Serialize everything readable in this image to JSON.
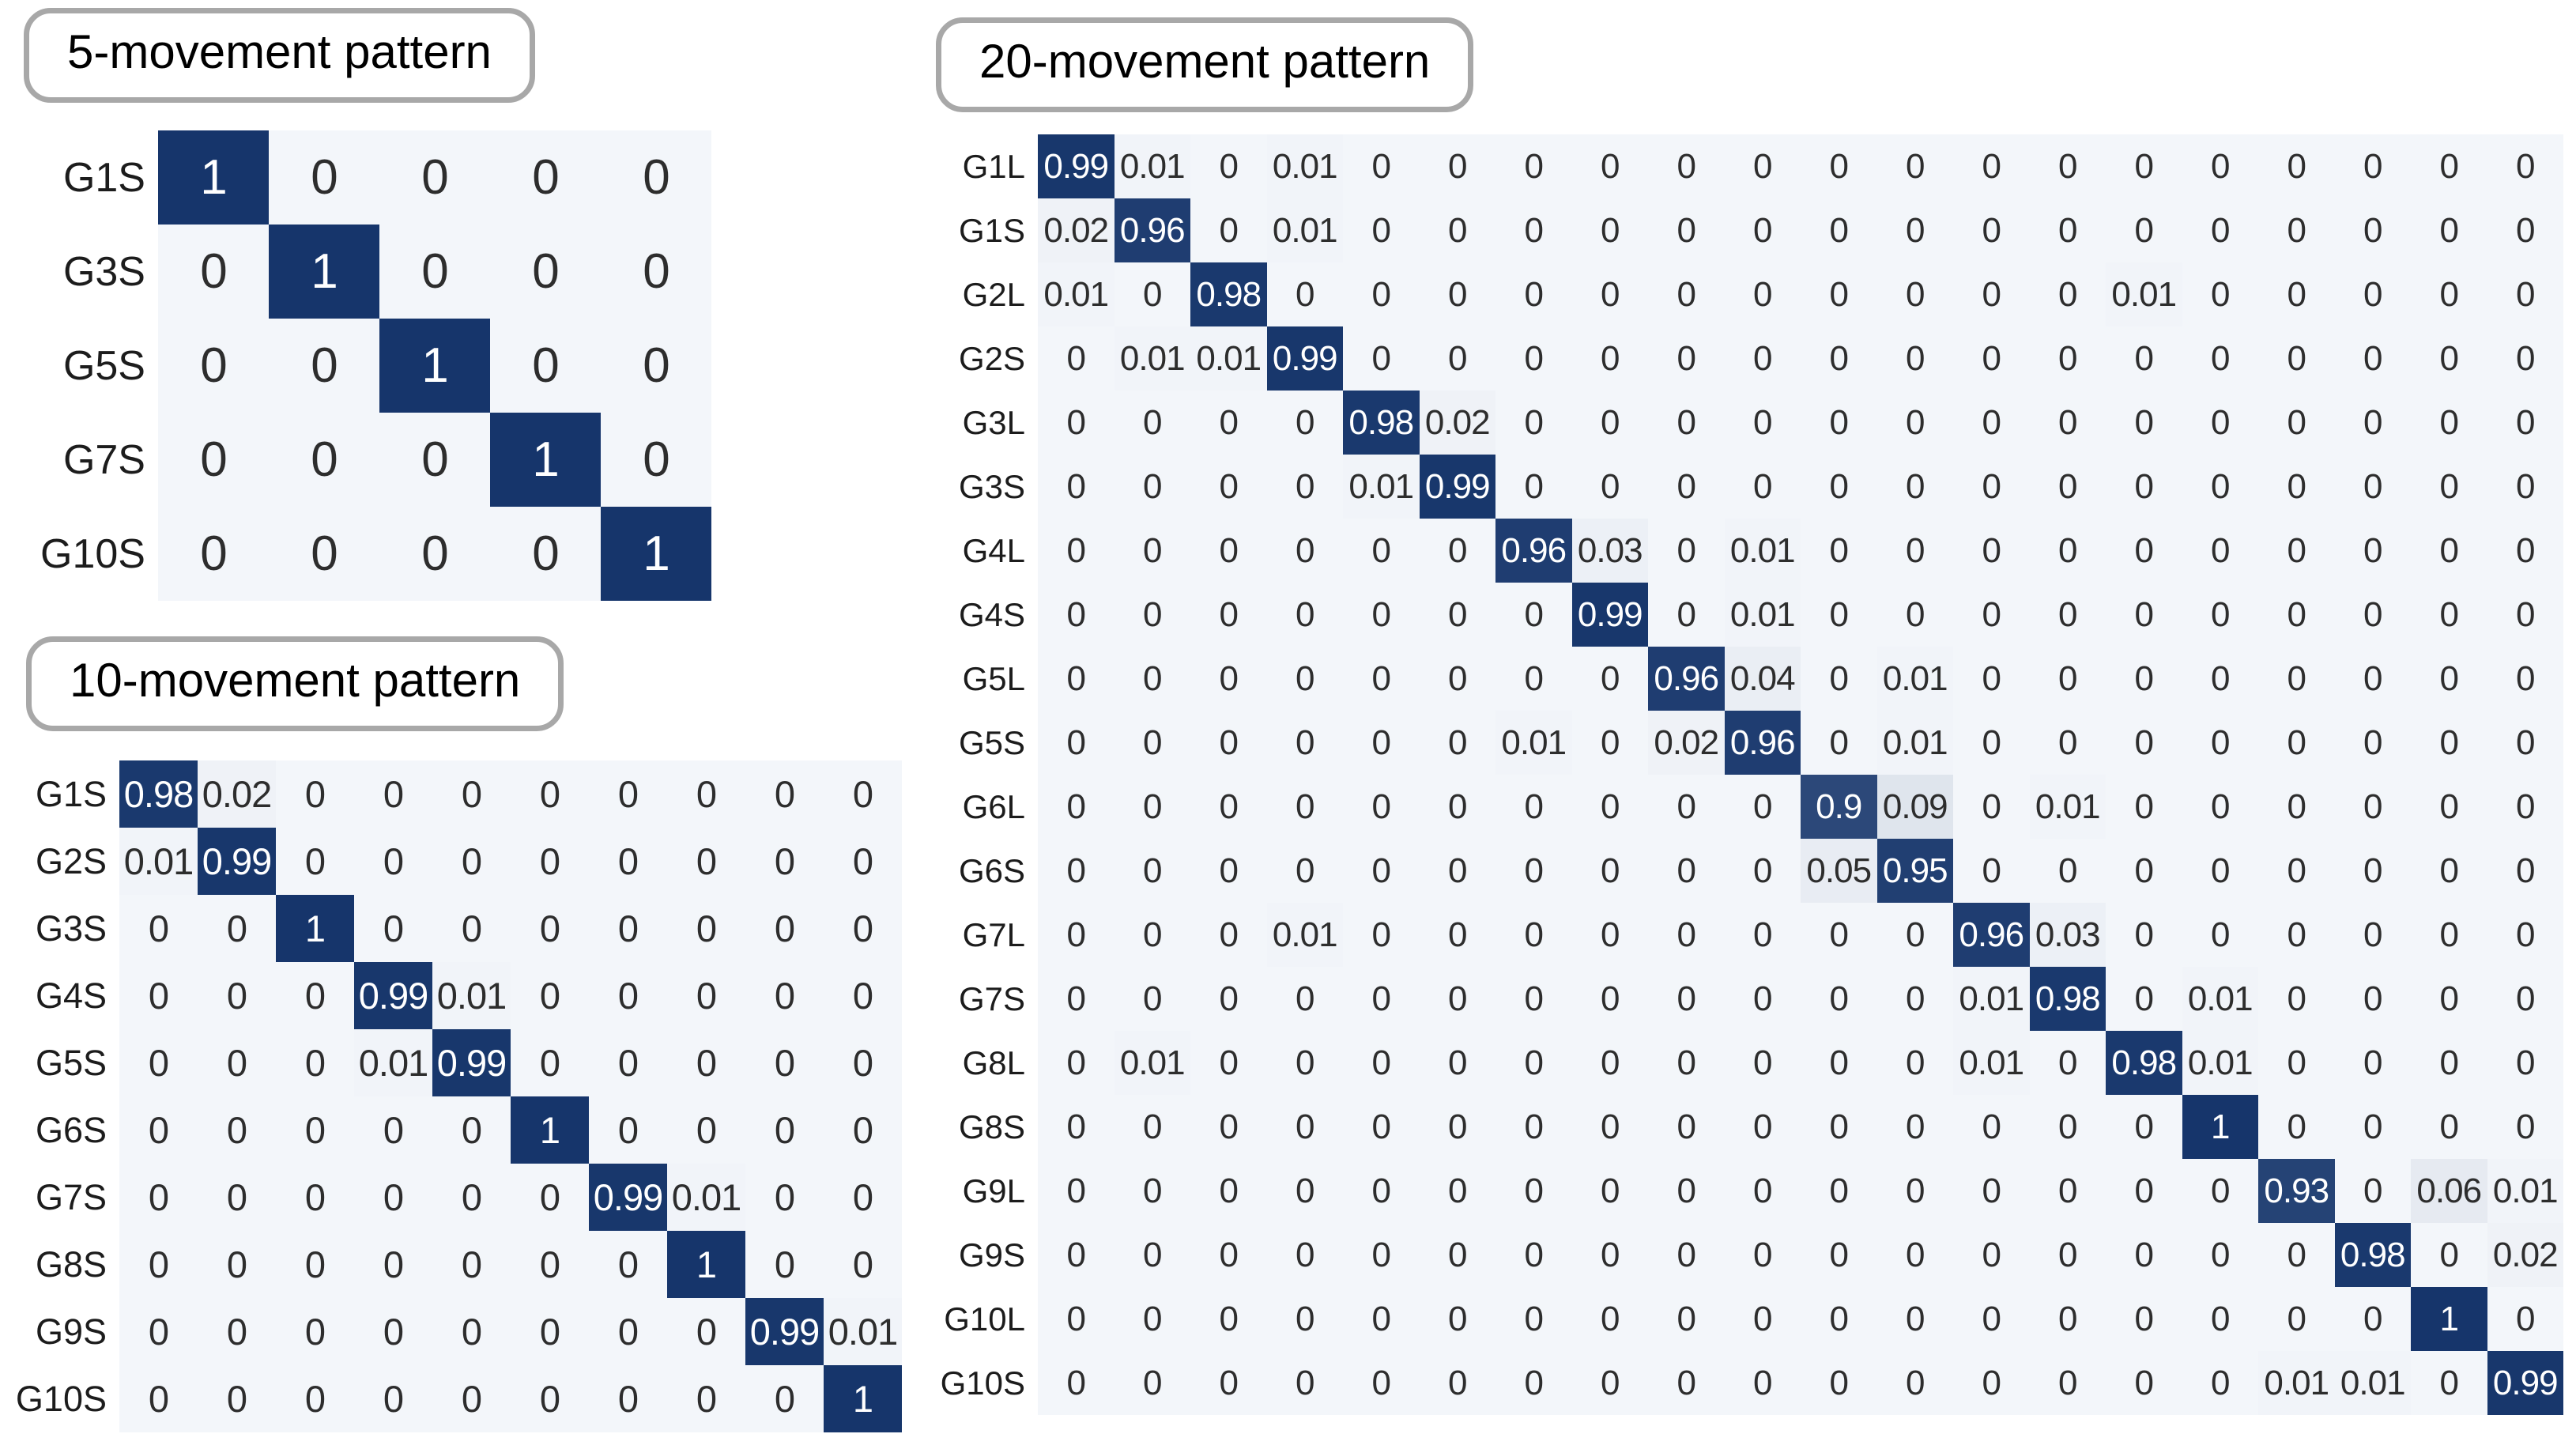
{
  "colors": {
    "page_bg": "#ffffff",
    "cell_low": "#f3f6fa",
    "cell_high": "#16356b",
    "value_text_dark": "#2d2d2d",
    "value_text_light": "#ffffff",
    "label_text": "#1c1c1c",
    "title_border": "#a8a8a8",
    "title_text": "#000000"
  },
  "chart_data": [
    {
      "type": "heatmap",
      "title": "5-movement pattern",
      "legend_position": "none",
      "grid": false,
      "row_labels": [
        "G1S",
        "G3S",
        "G5S",
        "G7S",
        "G10S"
      ],
      "values": [
        [
          1,
          0,
          0,
          0,
          0
        ],
        [
          0,
          1,
          0,
          0,
          0
        ],
        [
          0,
          0,
          1,
          0,
          0
        ],
        [
          0,
          0,
          0,
          1,
          0
        ],
        [
          0,
          0,
          0,
          0,
          1
        ]
      ]
    },
    {
      "type": "heatmap",
      "title": "10-movement pattern",
      "legend_position": "none",
      "grid": false,
      "row_labels": [
        "G1S",
        "G2S",
        "G3S",
        "G4S",
        "G5S",
        "G6S",
        "G7S",
        "G8S",
        "G9S",
        "G10S"
      ],
      "values": [
        [
          0.98,
          0.02,
          0,
          0,
          0,
          0,
          0,
          0,
          0,
          0
        ],
        [
          0.01,
          0.99,
          0,
          0,
          0,
          0,
          0,
          0,
          0,
          0
        ],
        [
          0,
          0,
          1,
          0,
          0,
          0,
          0,
          0,
          0,
          0
        ],
        [
          0,
          0,
          0,
          0.99,
          0.01,
          0,
          0,
          0,
          0,
          0
        ],
        [
          0,
          0,
          0,
          0.01,
          0.99,
          0,
          0,
          0,
          0,
          0
        ],
        [
          0,
          0,
          0,
          0,
          0,
          1,
          0,
          0,
          0,
          0
        ],
        [
          0,
          0,
          0,
          0,
          0,
          0,
          0.99,
          0.01,
          0,
          0
        ],
        [
          0,
          0,
          0,
          0,
          0,
          0,
          0,
          1,
          0,
          0
        ],
        [
          0,
          0,
          0,
          0,
          0,
          0,
          0,
          0,
          0.99,
          0.01
        ],
        [
          0,
          0,
          0,
          0,
          0,
          0,
          0,
          0,
          0,
          1
        ]
      ]
    },
    {
      "type": "heatmap",
      "title": "20-movement pattern",
      "legend_position": "none",
      "grid": false,
      "row_labels": [
        "G1L",
        "G1S",
        "G2L",
        "G2S",
        "G3L",
        "G3S",
        "G4L",
        "G4S",
        "G5L",
        "G5S",
        "G6L",
        "G6S",
        "G7L",
        "G7S",
        "G8L",
        "G8S",
        "G9L",
        "G9S",
        "G10L",
        "G10S"
      ],
      "values": [
        [
          0.99,
          0.01,
          0,
          0.01,
          0,
          0,
          0,
          0,
          0,
          0,
          0,
          0,
          0,
          0,
          0,
          0,
          0,
          0,
          0,
          0
        ],
        [
          0.02,
          0.96,
          0,
          0.01,
          0,
          0,
          0,
          0,
          0,
          0,
          0,
          0,
          0,
          0,
          0,
          0,
          0,
          0,
          0,
          0
        ],
        [
          0.01,
          0,
          0.98,
          0,
          0,
          0,
          0,
          0,
          0,
          0,
          0,
          0,
          0,
          0,
          0.01,
          0,
          0,
          0,
          0,
          0
        ],
        [
          0,
          0.01,
          0.01,
          0.99,
          0,
          0,
          0,
          0,
          0,
          0,
          0,
          0,
          0,
          0,
          0,
          0,
          0,
          0,
          0,
          0
        ],
        [
          0,
          0,
          0,
          0,
          0.98,
          0.02,
          0,
          0,
          0,
          0,
          0,
          0,
          0,
          0,
          0,
          0,
          0,
          0,
          0,
          0
        ],
        [
          0,
          0,
          0,
          0,
          0.01,
          0.99,
          0,
          0,
          0,
          0,
          0,
          0,
          0,
          0,
          0,
          0,
          0,
          0,
          0,
          0
        ],
        [
          0,
          0,
          0,
          0,
          0,
          0,
          0.96,
          0.03,
          0,
          0.01,
          0,
          0,
          0,
          0,
          0,
          0,
          0,
          0,
          0,
          0
        ],
        [
          0,
          0,
          0,
          0,
          0,
          0,
          0,
          0.99,
          0,
          0.01,
          0,
          0,
          0,
          0,
          0,
          0,
          0,
          0,
          0,
          0
        ],
        [
          0,
          0,
          0,
          0,
          0,
          0,
          0,
          0,
          0.96,
          0.04,
          0,
          0.01,
          0,
          0,
          0,
          0,
          0,
          0,
          0,
          0
        ],
        [
          0,
          0,
          0,
          0,
          0,
          0,
          0.01,
          0,
          0.02,
          0.96,
          0,
          0.01,
          0,
          0,
          0,
          0,
          0,
          0,
          0,
          0
        ],
        [
          0,
          0,
          0,
          0,
          0,
          0,
          0,
          0,
          0,
          0,
          0.9,
          0.09,
          0,
          0.01,
          0,
          0,
          0,
          0,
          0,
          0
        ],
        [
          0,
          0,
          0,
          0,
          0,
          0,
          0,
          0,
          0,
          0,
          0.05,
          0.95,
          0,
          0,
          0,
          0,
          0,
          0,
          0,
          0
        ],
        [
          0,
          0,
          0,
          0.01,
          0,
          0,
          0,
          0,
          0,
          0,
          0,
          0,
          0.96,
          0.03,
          0,
          0,
          0,
          0,
          0,
          0
        ],
        [
          0,
          0,
          0,
          0,
          0,
          0,
          0,
          0,
          0,
          0,
          0,
          0,
          0.01,
          0.98,
          0,
          0.01,
          0,
          0,
          0,
          0
        ],
        [
          0,
          0.01,
          0,
          0,
          0,
          0,
          0,
          0,
          0,
          0,
          0,
          0,
          0.01,
          0,
          0.98,
          0.01,
          0,
          0,
          0,
          0
        ],
        [
          0,
          0,
          0,
          0,
          0,
          0,
          0,
          0,
          0,
          0,
          0,
          0,
          0,
          0,
          0,
          1,
          0,
          0,
          0,
          0
        ],
        [
          0,
          0,
          0,
          0,
          0,
          0,
          0,
          0,
          0,
          0,
          0,
          0,
          0,
          0,
          0,
          0,
          0.93,
          0,
          0.06,
          0.01
        ],
        [
          0,
          0,
          0,
          0,
          0,
          0,
          0,
          0,
          0,
          0,
          0,
          0,
          0,
          0,
          0,
          0,
          0,
          0.98,
          0,
          0.02
        ],
        [
          0,
          0,
          0,
          0,
          0,
          0,
          0,
          0,
          0,
          0,
          0,
          0,
          0,
          0,
          0,
          0,
          0,
          0,
          1,
          0
        ],
        [
          0,
          0,
          0,
          0,
          0,
          0,
          0,
          0,
          0,
          0,
          0,
          0,
          0,
          0,
          0,
          0,
          0.01,
          0.01,
          0,
          0.99
        ]
      ]
    }
  ]
}
